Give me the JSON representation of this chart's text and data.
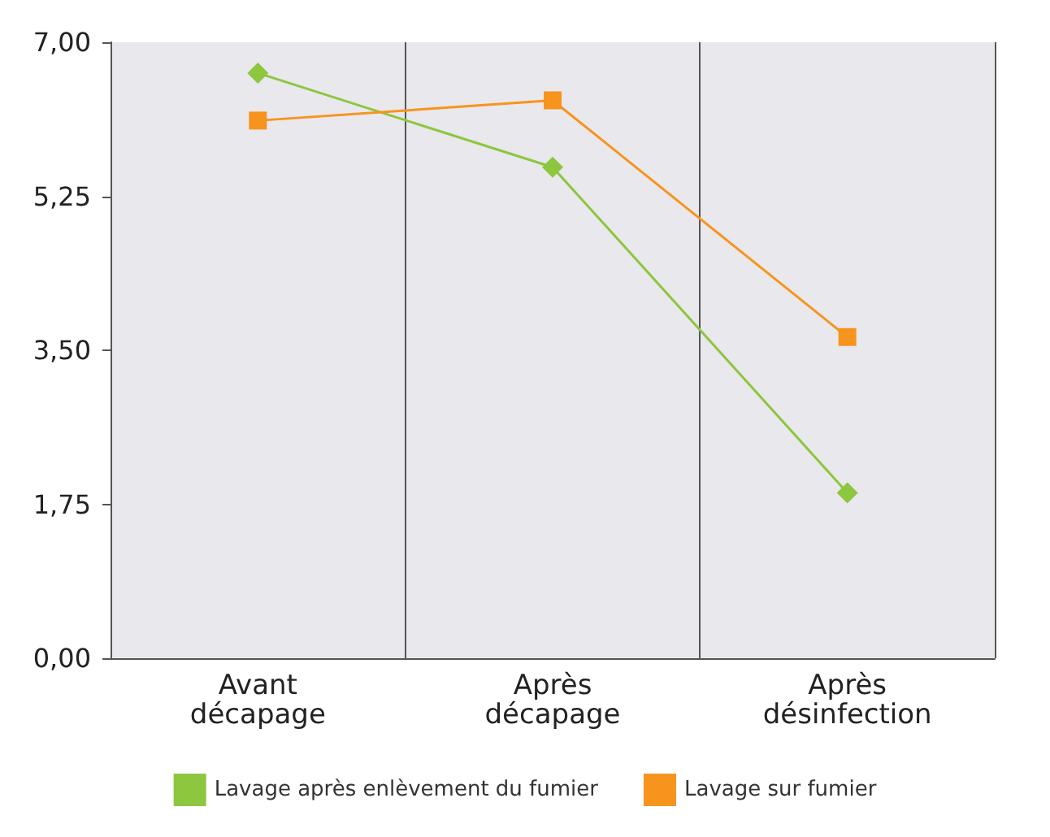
{
  "chart_data": {
    "type": "line",
    "categories": [
      "Avant décapage",
      "Après décapage",
      "Après désinfection"
    ],
    "series": [
      {
        "name": "Lavage après enlèvement du fumier",
        "color": "#8dc63f",
        "marker": "diamond",
        "values": [
          6.65,
          5.58,
          1.88
        ]
      },
      {
        "name": "Lavage sur fumier",
        "color": "#f7941d",
        "marker": "square",
        "values": [
          6.11,
          6.34,
          3.65
        ]
      }
    ],
    "ylim": [
      0,
      7
    ],
    "yticks": [
      {
        "value": 0,
        "label": "0,00"
      },
      {
        "value": 1.75,
        "label": "1,75"
      },
      {
        "value": 3.5,
        "label": "3,50"
      },
      {
        "value": 5.25,
        "label": "5,25"
      },
      {
        "value": 7,
        "label": "7,00"
      }
    ],
    "grid": "x",
    "legend": "bottom",
    "line_style": "solid"
  }
}
